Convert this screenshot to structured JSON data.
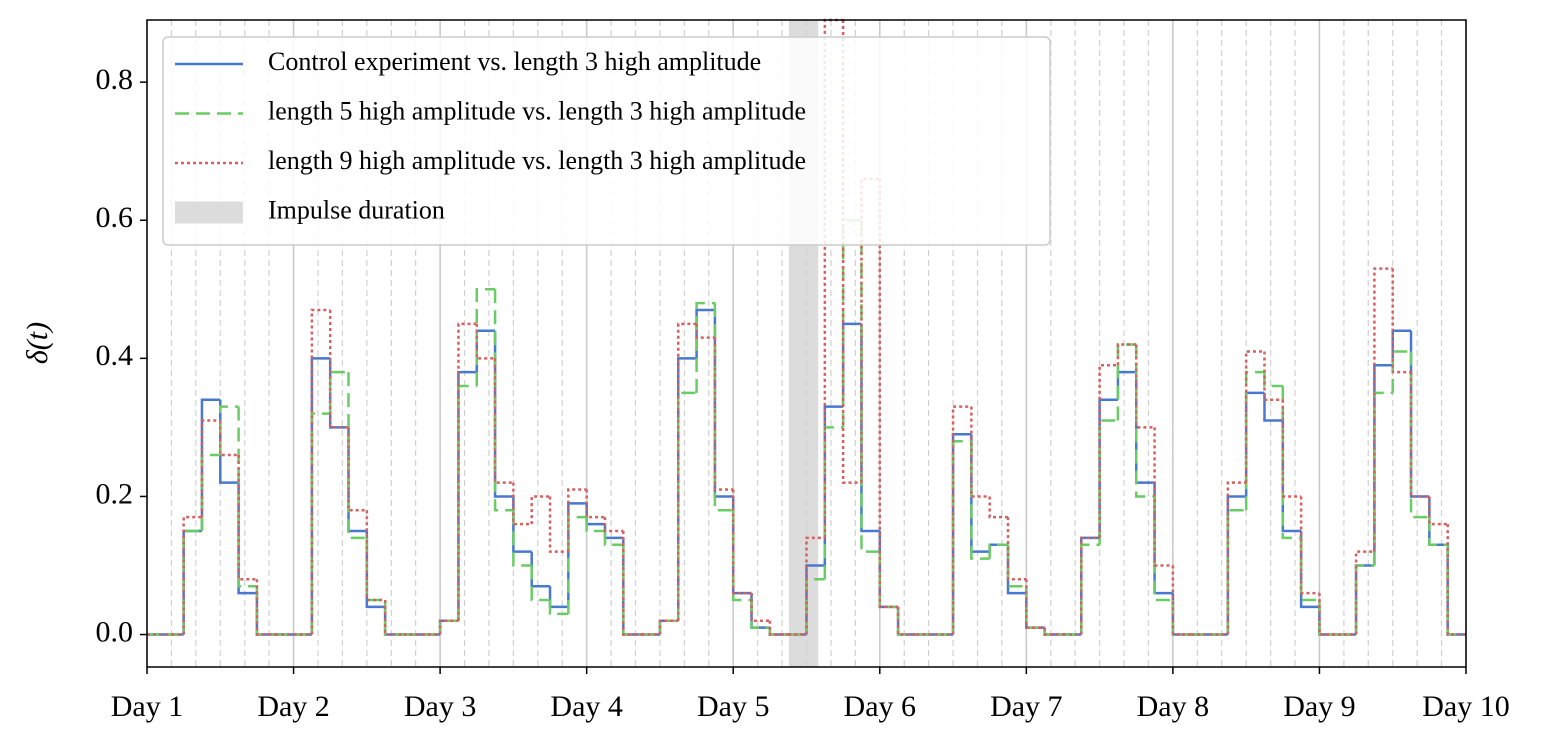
{
  "chart_data": {
    "type": "step",
    "ylabel": "δ(t)",
    "x": [
      1,
      1.125,
      1.25,
      1.375,
      1.5,
      1.625,
      1.75,
      1.875,
      2,
      2.125,
      2.25,
      2.375,
      2.5,
      2.625,
      2.75,
      2.875,
      3,
      3.125,
      3.25,
      3.375,
      3.5,
      3.625,
      3.75,
      3.875,
      4,
      4.125,
      4.25,
      4.375,
      4.5,
      4.625,
      4.75,
      4.875,
      5,
      5.125,
      5.25,
      5.375,
      5.5,
      5.625,
      5.75,
      5.875,
      6,
      6.125,
      6.25,
      6.375,
      6.5,
      6.625,
      6.75,
      6.875,
      7,
      7.125,
      7.25,
      7.375,
      7.5,
      7.625,
      7.75,
      7.875,
      8,
      8.125,
      8.25,
      8.375,
      8.5,
      8.625,
      8.75,
      8.875,
      9,
      9.125,
      9.25,
      9.375,
      9.5,
      9.625,
      9.75,
      9.875,
      10
    ],
    "series": [
      {
        "name": "Control experiment vs. length 3 high amplitude",
        "color": "#4878d0",
        "dash": "solid",
        "values": [
          0,
          0,
          0.15,
          0.34,
          0.22,
          0.06,
          0,
          0,
          0,
          0.4,
          0.3,
          0.15,
          0.04,
          0,
          0,
          0,
          0.02,
          0.38,
          0.44,
          0.2,
          0.12,
          0.07,
          0.04,
          0.19,
          0.16,
          0.14,
          0,
          0,
          0.02,
          0.4,
          0.47,
          0.2,
          0.06,
          0.01,
          0,
          0,
          0.1,
          0.33,
          0.45,
          0.15,
          0.04,
          0,
          0,
          0,
          0.29,
          0.12,
          0.13,
          0.06,
          0.01,
          0,
          0,
          0.14,
          0.34,
          0.38,
          0.22,
          0.06,
          0,
          0,
          0,
          0.2,
          0.35,
          0.31,
          0.15,
          0.04,
          0,
          0,
          0.1,
          0.39,
          0.44,
          0.2,
          0.13,
          0,
          0
        ]
      },
      {
        "name": "length 5 high amplitude vs. length 3 high amplitude",
        "color": "#6acc64",
        "dash": "dashed",
        "values": [
          0,
          0,
          0.15,
          0.26,
          0.33,
          0.07,
          0,
          0,
          0,
          0.32,
          0.38,
          0.14,
          0.05,
          0,
          0,
          0,
          0.02,
          0.36,
          0.5,
          0.18,
          0.1,
          0.05,
          0.03,
          0.17,
          0.15,
          0.13,
          0,
          0,
          0.02,
          0.35,
          0.48,
          0.18,
          0.05,
          0.01,
          0,
          0,
          0.08,
          0.3,
          0.6,
          0.12,
          0.04,
          0,
          0,
          0,
          0.28,
          0.11,
          0.13,
          0.07,
          0.01,
          0,
          0,
          0.13,
          0.31,
          0.42,
          0.2,
          0.05,
          0,
          0,
          0,
          0.18,
          0.38,
          0.36,
          0.14,
          0.05,
          0,
          0,
          0.1,
          0.35,
          0.41,
          0.17,
          0.13,
          0,
          0
        ]
      },
      {
        "name": "length 9 high amplitude vs. length 3 high amplitude",
        "color": "#d65f5f",
        "dash": "dotted",
        "values": [
          0,
          0,
          0.17,
          0.31,
          0.26,
          0.08,
          0,
          0,
          0,
          0.47,
          0.3,
          0.18,
          0.05,
          0,
          0,
          0,
          0.02,
          0.45,
          0.4,
          0.22,
          0.16,
          0.2,
          0.12,
          0.21,
          0.17,
          0.15,
          0,
          0,
          0.02,
          0.45,
          0.43,
          0.21,
          0.06,
          0.02,
          0,
          0,
          0.14,
          0.89,
          0.22,
          0.66,
          0.04,
          0,
          0,
          0,
          0.33,
          0.2,
          0.17,
          0.08,
          0.01,
          0,
          0,
          0.14,
          0.39,
          0.42,
          0.3,
          0.1,
          0,
          0,
          0,
          0.22,
          0.41,
          0.34,
          0.2,
          0.06,
          0,
          0,
          0.12,
          0.53,
          0.38,
          0.2,
          0.16,
          0,
          0
        ]
      }
    ],
    "span": {
      "name": "Impulse duration",
      "color": "#dcdcdc",
      "x": [
        5.38,
        5.58
      ]
    },
    "xlim": [
      1,
      10
    ],
    "xticks": [
      {
        "value": 1,
        "label": "Day 1"
      },
      {
        "value": 2,
        "label": "Day 2"
      },
      {
        "value": 3,
        "label": "Day 3"
      },
      {
        "value": 4,
        "label": "Day 4"
      },
      {
        "value": 5,
        "label": "Day 5"
      },
      {
        "value": 6,
        "label": "Day 6"
      },
      {
        "value": 7,
        "label": "Day 7"
      },
      {
        "value": 8,
        "label": "Day 8"
      },
      {
        "value": 9,
        "label": "Day 9"
      },
      {
        "value": 10,
        "label": "Day 10"
      }
    ],
    "xminorgrid": [
      1.167,
      1.333,
      1.5,
      1.667,
      1.833,
      2.167,
      2.333,
      2.5,
      2.667,
      2.833,
      3.167,
      3.333,
      3.5,
      3.667,
      3.833,
      4.167,
      4.333,
      4.5,
      4.667,
      4.833,
      5.167,
      5.333,
      5.5,
      5.667,
      5.833,
      6.167,
      6.333,
      6.5,
      6.667,
      6.833,
      7.167,
      7.333,
      7.5,
      7.667,
      7.833,
      8.167,
      8.333,
      8.5,
      8.667,
      8.833,
      9.167,
      9.333,
      9.5,
      9.667,
      9.833
    ],
    "ylim": [
      -0.047,
      0.89
    ],
    "yticks": [
      {
        "value": 0,
        "label": "0.0"
      },
      0.2,
      0.4,
      0.6,
      0.8
    ],
    "grid": true,
    "legend": "upper left"
  }
}
